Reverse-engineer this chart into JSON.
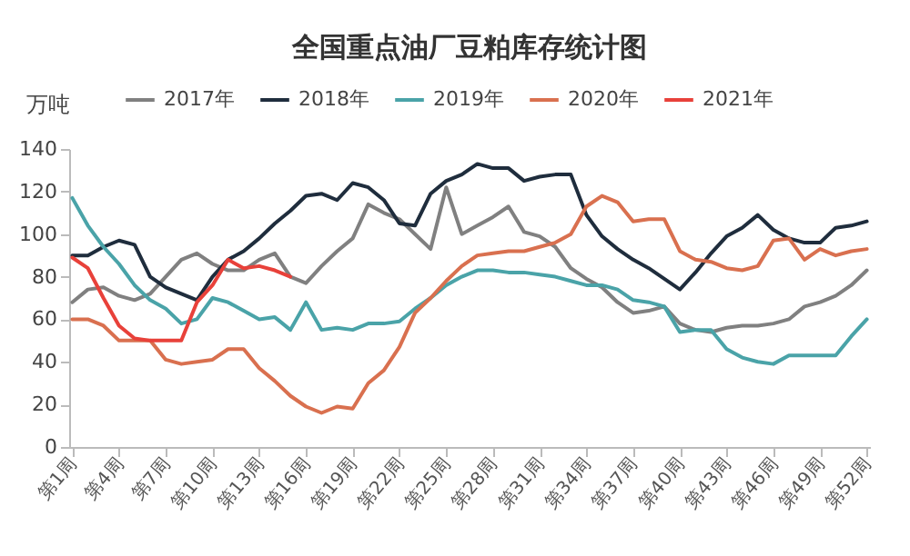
{
  "chart_data": {
    "type": "line",
    "title": "全国重点油厂豆粕库存统计图",
    "ylabel": "万吨",
    "categories": [
      "第1周",
      null,
      null,
      "第4周",
      null,
      null,
      "第7周",
      null,
      null,
      "第10周",
      null,
      null,
      "第13周",
      null,
      null,
      "第16周",
      null,
      null,
      "第19周",
      null,
      null,
      "第22周",
      null,
      null,
      "第25周",
      null,
      null,
      "第28周",
      null,
      null,
      "第31周",
      null,
      null,
      "第34周",
      null,
      null,
      "第37周",
      null,
      null,
      "第40周",
      null,
      null,
      "第43周",
      null,
      null,
      "第46周",
      null,
      null,
      "第49周",
      null,
      null,
      "第52周"
    ],
    "series": [
      {
        "name": "2017年",
        "color": "#808080",
        "values": [
          68,
          74,
          75,
          71,
          69,
          72,
          80,
          88,
          91,
          86,
          83,
          83,
          88,
          91,
          80,
          77,
          85,
          92,
          98,
          114,
          110,
          107,
          100,
          93,
          122,
          100,
          104,
          108,
          113,
          101,
          99,
          94,
          84,
          79,
          75,
          68,
          63,
          64,
          66,
          58,
          55,
          54,
          56,
          57,
          57,
          58,
          60,
          66,
          68,
          71,
          76,
          83
        ]
      },
      {
        "name": "2018年",
        "color": "#1f2d3d",
        "values": [
          90,
          90,
          94,
          97,
          95,
          80,
          75,
          72,
          69,
          80,
          88,
          92,
          98,
          105,
          111,
          118,
          119,
          116,
          124,
          122,
          116,
          105,
          104,
          119,
          125,
          128,
          133,
          131,
          131,
          125,
          127,
          128,
          128,
          109,
          99,
          93,
          88,
          84,
          79,
          74,
          82,
          91,
          99,
          103,
          109,
          102,
          98,
          96,
          96,
          103,
          104,
          106
        ]
      },
      {
        "name": "2019年",
        "color": "#4aa3a8",
        "values": [
          117,
          104,
          94,
          86,
          76,
          69,
          65,
          58,
          60,
          70,
          68,
          64,
          60,
          61,
          55,
          68,
          55,
          56,
          55,
          58,
          58,
          59,
          65,
          70,
          76,
          80,
          83,
          83,
          82,
          82,
          81,
          80,
          78,
          76,
          76,
          74,
          69,
          68,
          66,
          54,
          55,
          55,
          46,
          42,
          40,
          39,
          43,
          43,
          43,
          43,
          52,
          60
        ]
      },
      {
        "name": "2020年",
        "color": "#d9704f",
        "values": [
          60,
          60,
          57,
          50,
          50,
          50,
          41,
          39,
          40,
          41,
          46,
          46,
          37,
          31,
          24,
          19,
          16,
          19,
          18,
          30,
          36,
          47,
          63,
          70,
          78,
          85,
          90,
          91,
          92,
          92,
          94,
          96,
          100,
          113,
          118,
          115,
          106,
          107,
          107,
          92,
          88,
          87,
          84,
          83,
          85,
          97,
          98,
          88,
          93,
          90,
          92,
          93
        ]
      },
      {
        "name": "2021年",
        "color": "#e8413a",
        "values": [
          89,
          84,
          70,
          57,
          51,
          50,
          50,
          50,
          68,
          76,
          88,
          84,
          85,
          83,
          80,
          null,
          null,
          null,
          null,
          null,
          null,
          null,
          null,
          null,
          null,
          null,
          null,
          null,
          null,
          null,
          null,
          null,
          null,
          null,
          null,
          null,
          null,
          null,
          null,
          null,
          null,
          null,
          null,
          null,
          null,
          null,
          null,
          null,
          null,
          null,
          null,
          null
        ]
      }
    ],
    "ylim": [
      0,
      140
    ],
    "yticks": [
      0,
      20,
      40,
      60,
      80,
      100,
      120,
      140
    ],
    "grid": false,
    "legend": "top"
  }
}
